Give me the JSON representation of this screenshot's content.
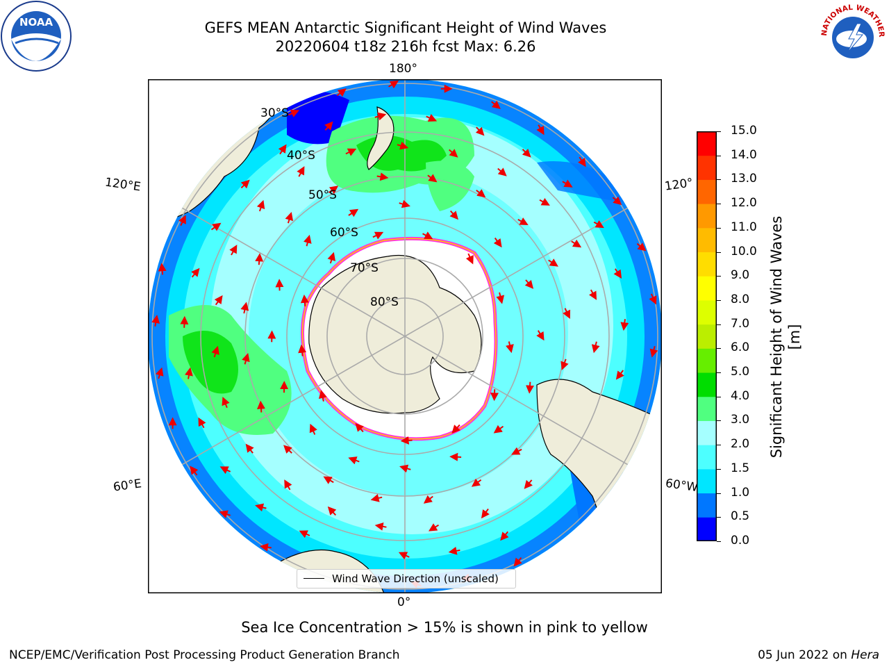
{
  "title": {
    "line1": "GEFS MEAN Antarctic Significant Height of Wind Waves",
    "line2": "20220604 t18z 216h fcst   Max: 6.26"
  },
  "logos": {
    "left": "noaa-logo",
    "right": "national-weather-service-logo",
    "left_text": "NOAA",
    "right_text": "NATIONAL WEATHER SERVICE"
  },
  "map": {
    "projection": "south-polar-stereographic",
    "lon_labels": {
      "top": "180°",
      "bottom": "0°",
      "left_upper": "120°E",
      "left_lower": "60°E",
      "right_upper": "120°",
      "right_lower": "60°W"
    },
    "lat_labels": [
      "30°S",
      "40°S",
      "50°S",
      "60°S",
      "70°S",
      "80°S"
    ],
    "colors": {
      "land": "#efedda",
      "ice": "#ffffff",
      "ice_edge_pink": "#ff33dd",
      "ice_edge_yellow": "#ffcc00",
      "arrow": "#ee0000",
      "grid": "#aaaaaa"
    }
  },
  "colorbar": {
    "label": "Significant Height of Wind Waves [m]",
    "ticks": [
      "0.0",
      "0.5",
      "1.0",
      "1.5",
      "2.0",
      "3.0",
      "4.0",
      "5.0",
      "6.0",
      "7.0",
      "8.0",
      "9.0",
      "10.0",
      "11.0",
      "12.0",
      "13.0",
      "14.0",
      "15.0"
    ],
    "colors": [
      "#0000ff",
      "#0077ff",
      "#00e6ff",
      "#4dffff",
      "#a5ffff",
      "#50ff80",
      "#00dd00",
      "#66ee00",
      "#bbee00",
      "#ddff00",
      "#ffff00",
      "#ffdd00",
      "#ffbb00",
      "#ff9900",
      "#ff6600",
      "#ff3300",
      "#ff0000"
    ]
  },
  "legend": {
    "label": "Wind Wave Direction (unscaled)"
  },
  "note": "Sea Ice Concentration > 15% is shown in pink to yellow",
  "footer": {
    "left": "NCEP/EMC/Verification Post Processing Product Generation Branch",
    "right_prefix": "05 Jun 2022 on ",
    "right_host": "Hera"
  }
}
